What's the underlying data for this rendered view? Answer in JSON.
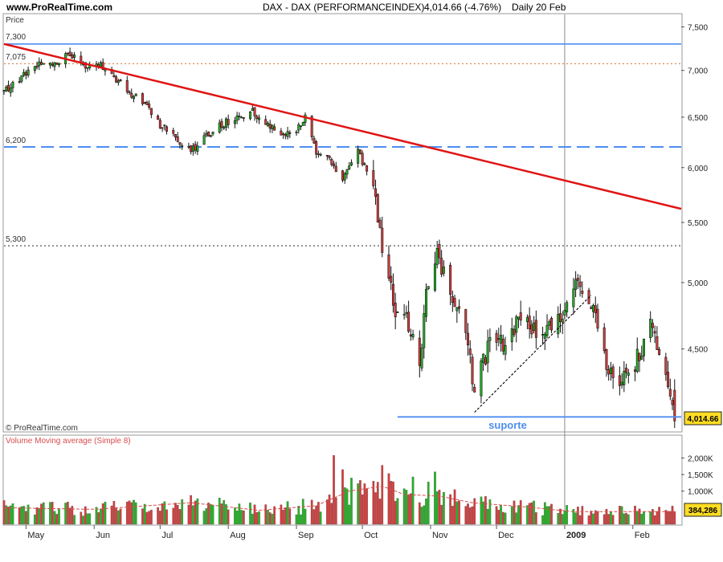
{
  "header": {
    "site": "www.ProRealTime.com",
    "instrument": "DAX - DAX (PERFORMANCEINDEX)",
    "quote": "4,014.66 (-4.76%)",
    "period": "Daily  20 Feb"
  },
  "price_panel": {
    "label": "Price",
    "copyright": "© ProRealTime.com",
    "last_value": "4,014.66",
    "annotation": "suporte",
    "level_labels": [
      "7,300",
      "7,075",
      "6,200",
      "5,300"
    ]
  },
  "volume_panel": {
    "label": "Volume Moving average (Simple 8)",
    "last_value": "384,286"
  },
  "colors": {
    "up": "#22b522",
    "down": "#d93b3b",
    "trendline": "#e01414",
    "support": "#4d8ef0",
    "ma": "#d94c4c",
    "last_tag": "#ffdd22"
  },
  "chart_data": [
    {
      "type": "candlestick",
      "title": "DAX - DAX (PERFORMANCEINDEX)",
      "y_axis": {
        "scale": "log",
        "ticks": [
          "7,500",
          "7,000",
          "6,500",
          "6,000",
          "5,500",
          "5,000",
          "4,500"
        ],
        "tick_values": [
          7500,
          7000,
          6500,
          6000,
          5500,
          5000,
          4500
        ],
        "range": [
          3950,
          7650
        ]
      },
      "x_axis": {
        "start": "2008-04-21",
        "end": "2009-02-23",
        "tick_labels": [
          "May",
          "Jun",
          "Jul",
          "Aug",
          "Sep",
          "Oct",
          "Nov",
          "Dec",
          "2009",
          "Feb"
        ],
        "tick_dates": [
          "2008-05-01",
          "2008-06-01",
          "2008-07-01",
          "2008-08-01",
          "2008-09-01",
          "2008-10-01",
          "2008-11-01",
          "2008-12-01",
          "2009-01-01",
          "2009-02-01"
        ]
      },
      "anchors": [
        [
          "2008-04-21",
          6780
        ],
        [
          "2008-04-28",
          6900
        ],
        [
          "2008-05-06",
          7050
        ],
        [
          "2008-05-14",
          7080
        ],
        [
          "2008-05-20",
          7210
        ],
        [
          "2008-05-26",
          7060
        ],
        [
          "2008-06-03",
          7080
        ],
        [
          "2008-06-10",
          6920
        ],
        [
          "2008-06-17",
          6760
        ],
        [
          "2008-06-24",
          6640
        ],
        [
          "2008-07-01",
          6420
        ],
        [
          "2008-07-08",
          6300
        ],
        [
          "2008-07-15",
          6150
        ],
        [
          "2008-07-21",
          6300
        ],
        [
          "2008-07-28",
          6420
        ],
        [
          "2008-08-04",
          6480
        ],
        [
          "2008-08-12",
          6560
        ],
        [
          "2008-08-19",
          6420
        ],
        [
          "2008-08-26",
          6300
        ],
        [
          "2008-09-01",
          6350
        ],
        [
          "2008-09-05",
          6510
        ],
        [
          "2008-09-10",
          6160
        ],
        [
          "2008-09-15",
          6120
        ],
        [
          "2008-09-22",
          5880
        ],
        [
          "2008-09-29",
          6180
        ],
        [
          "2008-10-02",
          6000
        ],
        [
          "2008-10-07",
          5700
        ],
        [
          "2008-10-10",
          5300
        ],
        [
          "2008-10-13",
          5050
        ],
        [
          "2008-10-17",
          4700
        ],
        [
          "2008-10-20",
          4820
        ],
        [
          "2008-10-27",
          4350
        ],
        [
          "2008-10-30",
          4950
        ],
        [
          "2008-11-04",
          5200
        ],
        [
          "2008-11-10",
          4900
        ],
        [
          "2008-11-17",
          4600
        ],
        [
          "2008-11-21",
          4220
        ],
        [
          "2008-11-28",
          4550
        ],
        [
          "2008-12-05",
          4550
        ],
        [
          "2008-12-12",
          4720
        ],
        [
          "2008-12-19",
          4640
        ],
        [
          "2008-12-30",
          4700
        ],
        [
          "2009-01-06",
          4980
        ],
        [
          "2009-01-13",
          4850
        ],
        [
          "2009-01-20",
          4350
        ],
        [
          "2009-01-27",
          4300
        ],
        [
          "2009-02-02",
          4400
        ],
        [
          "2009-02-09",
          4650
        ],
        [
          "2009-02-13",
          4520
        ],
        [
          "2009-02-18",
          4200
        ],
        [
          "2009-02-20",
          4015
        ]
      ],
      "levels": [
        {
          "label": "7,300",
          "value": 7300,
          "style": "solid",
          "color": "#4d8ef0"
        },
        {
          "label": "7,075",
          "value": 7075,
          "style": "dotted",
          "color": "#e08a55"
        },
        {
          "label": "6,200",
          "value": 6200,
          "style": "dashed",
          "color": "#4d8ef0"
        },
        {
          "label": "5,300",
          "value": 5300,
          "style": "dotted",
          "color": "#555555"
        }
      ],
      "trendline": {
        "from": [
          "2008-04-21",
          7300
        ],
        "to": [
          "2009-02-23",
          5620
        ]
      },
      "support": {
        "from": [
          "2008-10-17",
          4040
        ],
        "to": [
          "2009-02-23",
          4040
        ],
        "label": "suporte"
      },
      "uptrend": {
        "from": [
          "2008-11-21",
          4070
        ],
        "to": [
          "2009-01-13",
          4900
        ]
      },
      "last": {
        "date": "2009-02-20",
        "value": 4014.66,
        "change_pct": -4.76
      }
    },
    {
      "type": "bar",
      "title": "Volume Moving average (Simple 8)",
      "y_axis": {
        "ticks": [
          "2,000K",
          "1,500K",
          "1,000K"
        ],
        "tick_values": [
          2000,
          1500,
          1000
        ],
        "range": [
          0,
          2350
        ],
        "units": "K"
      },
      "anchors": [
        [
          "2008-04-21",
          500
        ],
        [
          "2008-06-01",
          450
        ],
        [
          "2008-07-15",
          650
        ],
        [
          "2008-08-15",
          420
        ],
        [
          "2008-09-10",
          560
        ],
        [
          "2008-09-25",
          1000
        ],
        [
          "2008-10-10",
          1150
        ],
        [
          "2008-10-20",
          900
        ],
        [
          "2008-11-05",
          850
        ],
        [
          "2008-11-20",
          650
        ],
        [
          "2008-12-15",
          520
        ],
        [
          "2009-01-05",
          380
        ],
        [
          "2009-02-20",
          384
        ]
      ],
      "spikes": [
        [
          "2008-09-18",
          2080
        ],
        [
          "2008-09-22",
          1650
        ],
        [
          "2008-10-10",
          1780
        ],
        [
          "2008-10-13",
          1530
        ],
        [
          "2008-10-06",
          1300
        ],
        [
          "2008-10-24",
          1430
        ],
        [
          "2008-11-03",
          1580
        ],
        [
          "2008-10-31",
          1280
        ]
      ],
      "last": {
        "date": "2009-02-20",
        "value": 384.286,
        "label": "384,286"
      }
    }
  ]
}
